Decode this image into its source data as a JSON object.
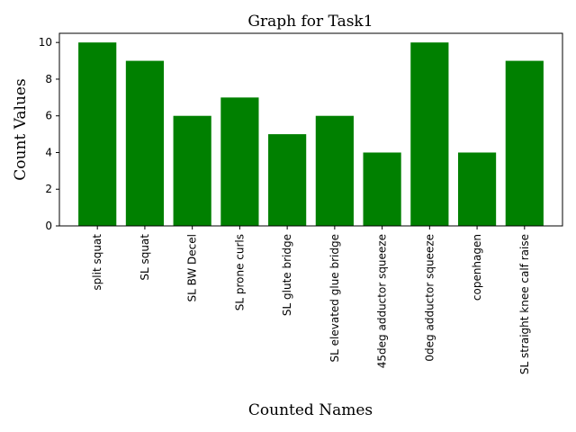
{
  "chart_data": {
    "type": "bar",
    "title": "Graph for Task1",
    "xlabel": "Counted Names",
    "ylabel": "Count Values",
    "categories": [
      "split squat",
      "SL squat",
      "SL BW Decel",
      "SL prone curls",
      "SL glute bridge",
      "SL elevated glue bridge",
      "45deg adductor squeeze",
      "0deg adductor squeeze",
      "copenhagen",
      "SL straight knee calf raise"
    ],
    "values": [
      10,
      9,
      6,
      7,
      5,
      6,
      4,
      10,
      4,
      9
    ],
    "ylim": [
      0,
      10.5
    ],
    "yticks": [
      0,
      2,
      4,
      6,
      8,
      10
    ],
    "bar_color": "#008000",
    "grid": false,
    "legend": "none"
  }
}
